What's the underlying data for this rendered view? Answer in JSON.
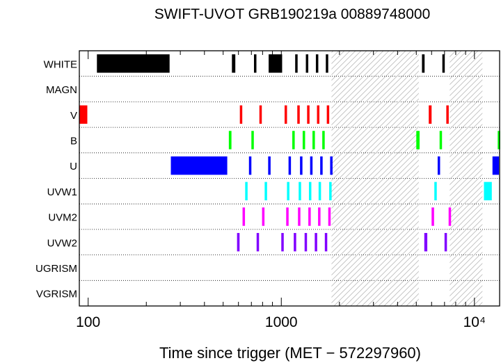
{
  "chart_data": {
    "type": "timeline",
    "title": "SWIFT-UVOT GRB190219a 00889748000",
    "xlabel": "Time since trigger (MET − 572297960)",
    "x_scale": "log",
    "xlim": [
      90,
      13500
    ],
    "x_ticks": [
      {
        "value": 100,
        "label": "100"
      },
      {
        "value": 1000,
        "label": "1000"
      },
      {
        "value": 10000,
        "label": "10⁴"
      }
    ],
    "rows": [
      "WHITE",
      "MAGN",
      "V",
      "B",
      "U",
      "UVW1",
      "UVM2",
      "UVW2",
      "UGRISM",
      "VGRISM"
    ],
    "shaded_intervals": [
      [
        1820,
        5150
      ],
      [
        7450,
        11000
      ]
    ],
    "series": [
      {
        "filter": "WHITE",
        "color": "#000000",
        "intervals": [
          [
            111,
            264
          ],
          [
            555,
            578
          ],
          [
            722,
            740
          ],
          [
            860,
            875
          ],
          [
            880,
            1010
          ],
          [
            1180,
            1195
          ],
          [
            1340,
            1355
          ],
          [
            1510,
            1525
          ],
          [
            1700,
            1715
          ],
          [
            5350,
            5520
          ],
          [
            6820,
            7000
          ]
        ]
      },
      {
        "filter": "MAGN",
        "color": "#000000",
        "intervals": []
      },
      {
        "filter": "V",
        "color": "#ff0000",
        "intervals": [
          [
            90,
            99
          ],
          [
            610,
            628
          ],
          [
            770,
            786
          ],
          [
            1040,
            1055
          ],
          [
            1210,
            1225
          ],
          [
            1360,
            1375
          ],
          [
            1530,
            1545
          ],
          [
            1720,
            1735
          ],
          [
            5800,
            6000
          ],
          [
            7150,
            7330
          ]
        ]
      },
      {
        "filter": "B",
        "color": "#00ff00",
        "intervals": [
          [
            535,
            552
          ],
          [
            700,
            716
          ],
          [
            1140,
            1155
          ],
          [
            1290,
            1305
          ],
          [
            1450,
            1465
          ],
          [
            1630,
            1645
          ],
          [
            5000,
            5200
          ],
          [
            6600,
            6780
          ],
          [
            13200,
            13500
          ]
        ]
      },
      {
        "filter": "U",
        "color": "#0000ff",
        "intervals": [
          [
            268,
            525
          ],
          [
            680,
            697
          ],
          [
            855,
            870
          ],
          [
            1090,
            1105
          ],
          [
            1250,
            1265
          ],
          [
            1410,
            1425
          ],
          [
            1590,
            1605
          ],
          [
            1790,
            1810
          ],
          [
            6450,
            6620
          ],
          [
            12400,
            13400
          ]
        ]
      },
      {
        "filter": "UVW1",
        "color": "#00ffff",
        "intervals": [
          [
            650,
            667
          ],
          [
            820,
            835
          ],
          [
            1070,
            1085
          ],
          [
            1230,
            1245
          ],
          [
            1390,
            1405
          ],
          [
            1560,
            1575
          ],
          [
            1770,
            1785
          ],
          [
            6200,
            6380
          ],
          [
            11200,
            12300
          ]
        ]
      },
      {
        "filter": "UVM2",
        "color": "#ff00ff",
        "intervals": [
          [
            630,
            648
          ],
          [
            795,
            812
          ],
          [
            1060,
            1075
          ],
          [
            1220,
            1235
          ],
          [
            1380,
            1395
          ],
          [
            1550,
            1565
          ],
          [
            1750,
            1765
          ],
          [
            6000,
            6180
          ],
          [
            7350,
            7530
          ]
        ]
      },
      {
        "filter": "UVW2",
        "color": "#8000ff",
        "intervals": [
          [
            590,
            608
          ],
          [
            745,
            762
          ],
          [
            1000,
            1015
          ],
          [
            1160,
            1175
          ],
          [
            1320,
            1335
          ],
          [
            1490,
            1505
          ],
          [
            1680,
            1695
          ],
          [
            5500,
            5700
          ],
          [
            7000,
            7180
          ]
        ]
      },
      {
        "filter": "UGRISM",
        "color": "#000000",
        "intervals": []
      },
      {
        "filter": "VGRISM",
        "color": "#000000",
        "intervals": []
      }
    ]
  }
}
